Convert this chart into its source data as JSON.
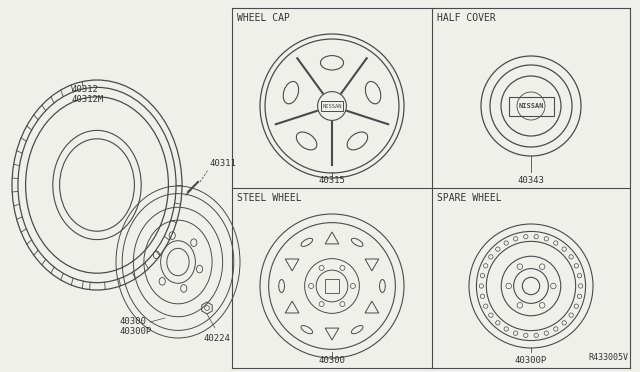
{
  "bg_color": "#f0f0eb",
  "line_color": "#4a4a4a",
  "text_color": "#333333",
  "ref_code": "R433005V",
  "parts": {
    "tire": {
      "label1": "40312",
      "label2": "40312M"
    },
    "valve": {
      "label": "40311"
    },
    "wheel": {
      "label1": "40300",
      "label2": "40300P"
    },
    "nut": {
      "label": "40224"
    },
    "wheel_cap": {
      "label": "40315",
      "title": "WHEEL CAP"
    },
    "half_cover": {
      "label": "40343",
      "title": "HALF COVER"
    },
    "steel_wheel": {
      "label": "40300",
      "title": "STEEL WHEEL"
    },
    "spare_wheel": {
      "label": "40300P",
      "title": "SPARE WHEEL"
    }
  },
  "font_size_label": 6.5,
  "font_size_title": 7.0
}
